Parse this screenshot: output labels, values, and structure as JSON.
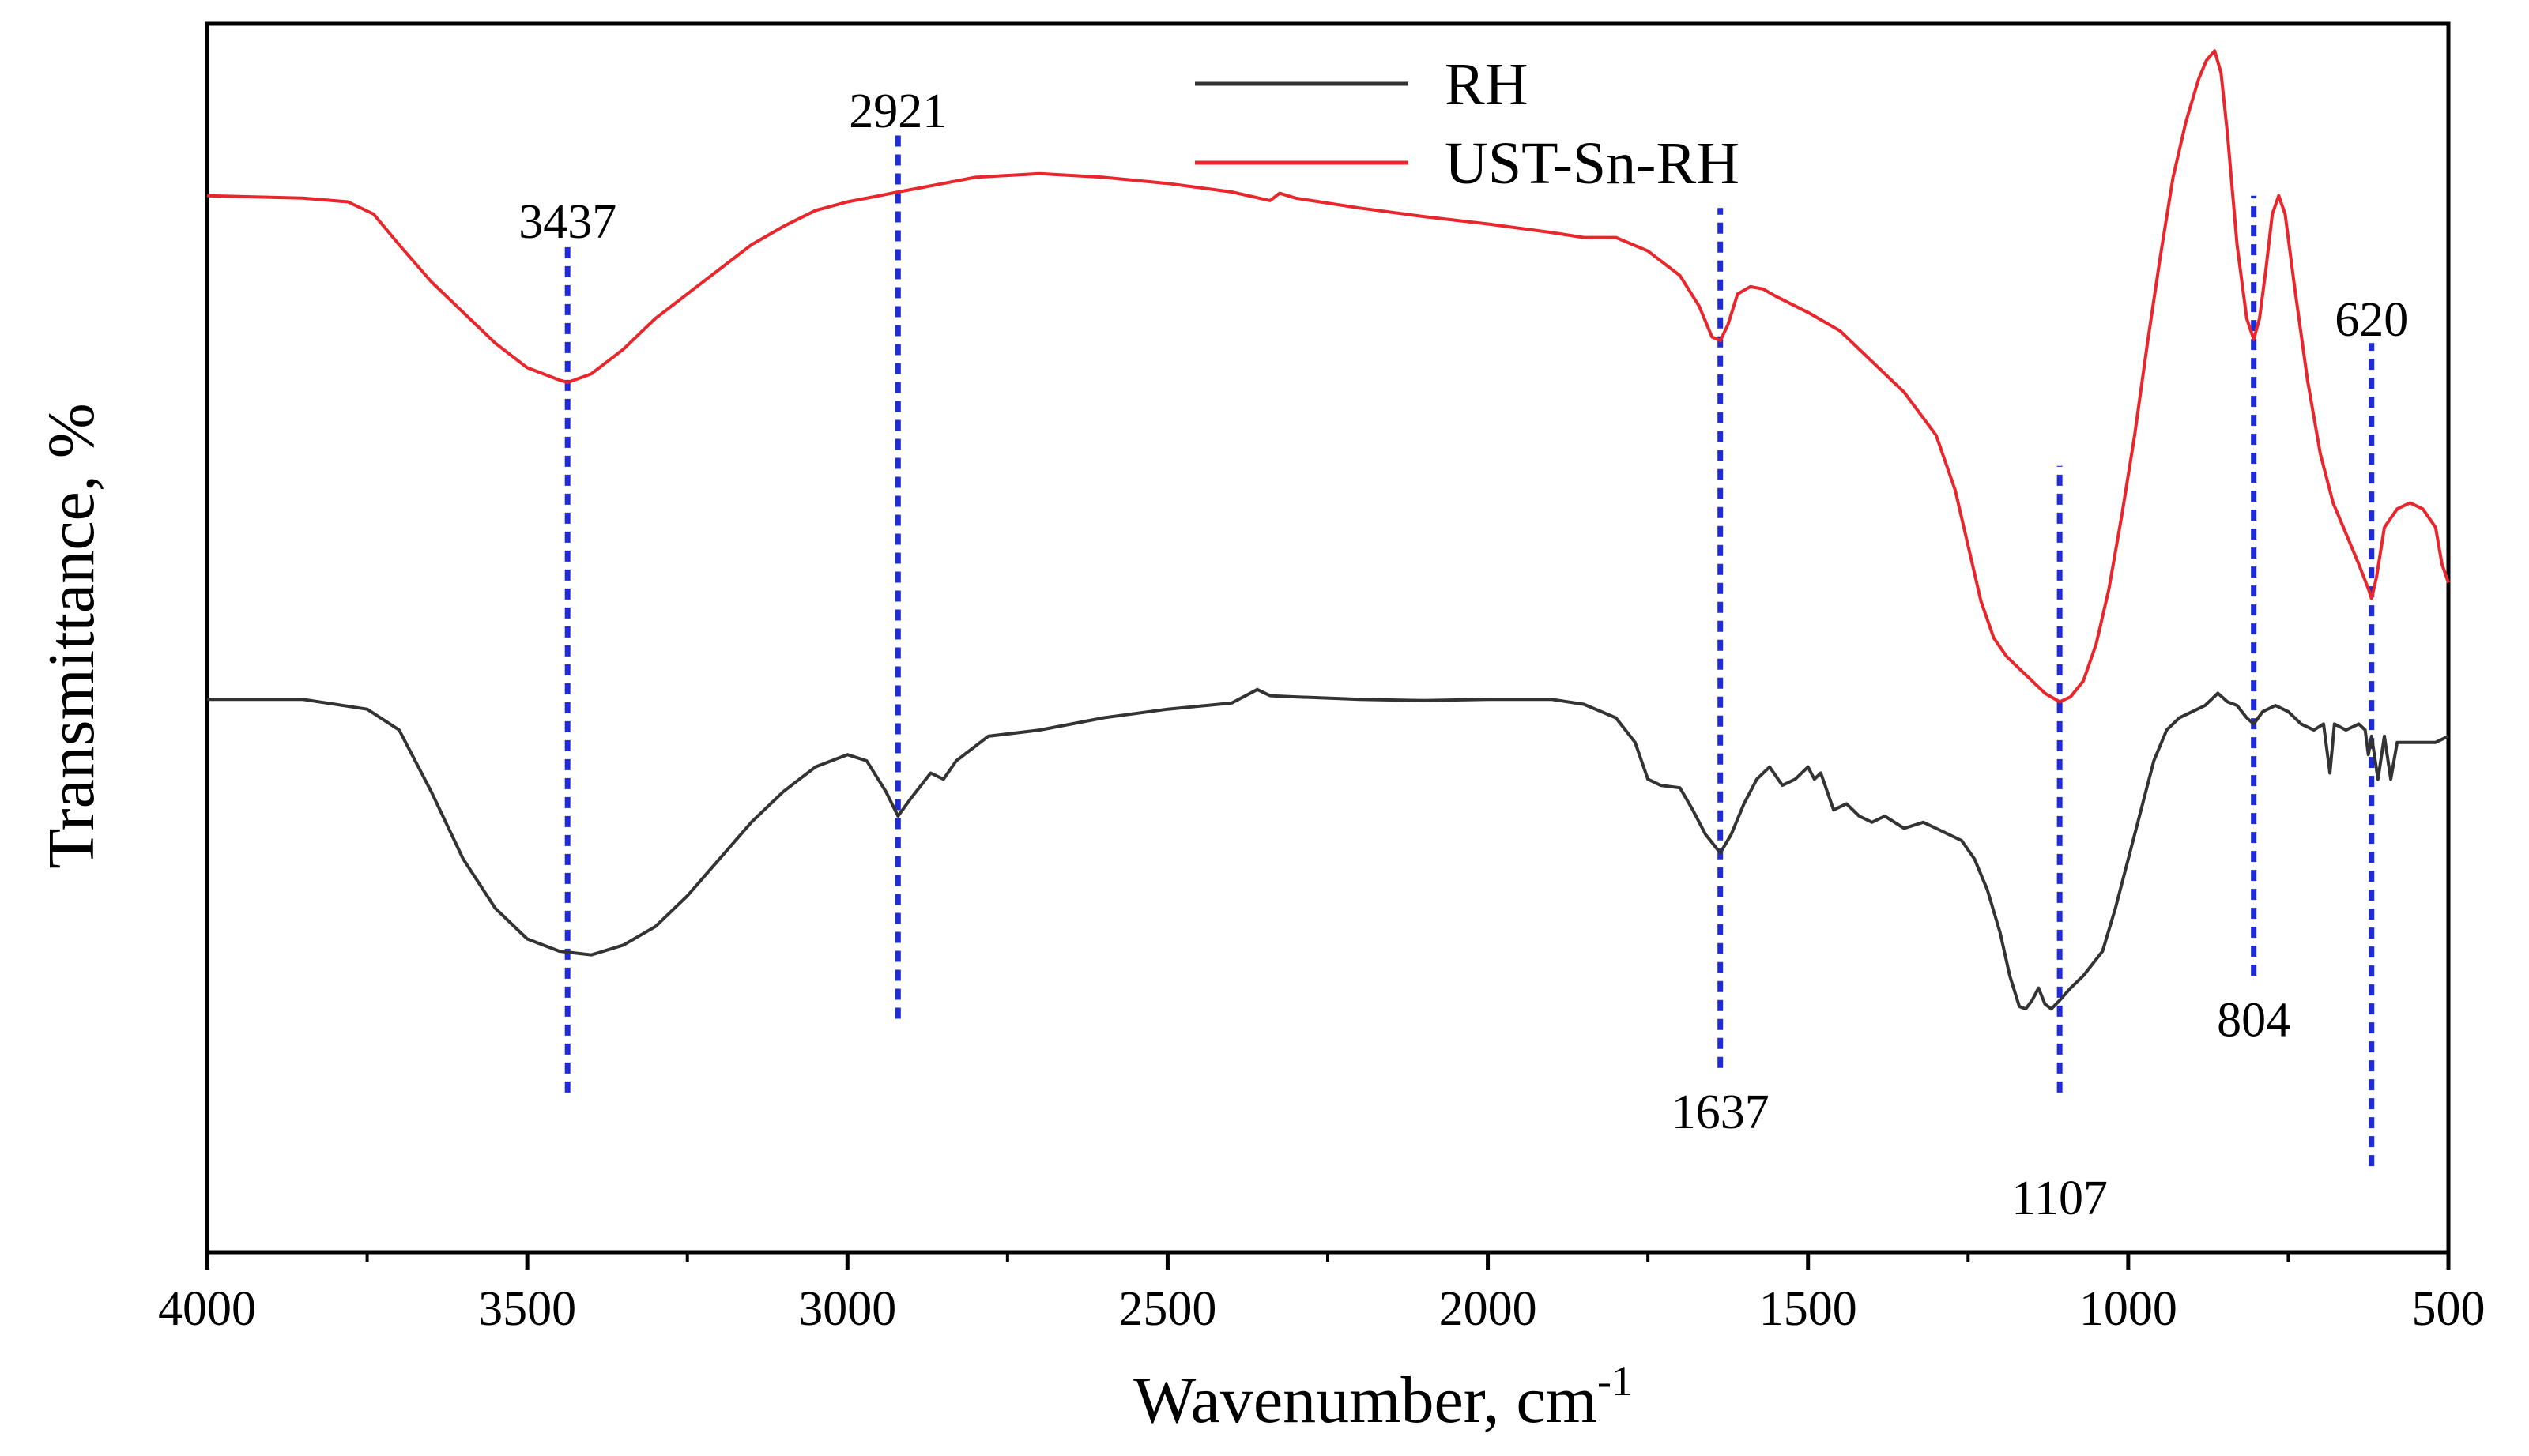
{
  "chart_data": {
    "type": "line",
    "title": "",
    "xlabel": "Wavenumber, cm",
    "xlabel_superscript": "-1",
    "ylabel": "Transmittance, %",
    "xlim": [
      4000,
      500
    ],
    "x_reversed": true,
    "ylim": [
      0,
      100
    ],
    "y_ticks_labeled": false,
    "x_ticks": [
      4000,
      3500,
      3000,
      2500,
      2000,
      1500,
      1000,
      500
    ],
    "x_tick_labels": [
      "4000",
      "3500",
      "3000",
      "2500",
      "2000",
      "1500",
      "1000",
      "500"
    ],
    "legend": {
      "position": "top-center"
    },
    "series": [
      {
        "name": "RH",
        "color": "#333333",
        "points": [
          [
            4000,
            45.0
          ],
          [
            3850,
            45.0
          ],
          [
            3750,
            44.2
          ],
          [
            3700,
            42.5
          ],
          [
            3650,
            37.5
          ],
          [
            3600,
            32.0
          ],
          [
            3550,
            28.0
          ],
          [
            3500,
            25.5
          ],
          [
            3450,
            24.5
          ],
          [
            3400,
            24.2
          ],
          [
            3350,
            25.0
          ],
          [
            3300,
            26.5
          ],
          [
            3250,
            29.0
          ],
          [
            3200,
            32.0
          ],
          [
            3150,
            35.0
          ],
          [
            3100,
            37.5
          ],
          [
            3050,
            39.5
          ],
          [
            3000,
            40.5
          ],
          [
            2970,
            40.0
          ],
          [
            2940,
            37.5
          ],
          [
            2921,
            35.5
          ],
          [
            2900,
            37.0
          ],
          [
            2870,
            39.0
          ],
          [
            2850,
            38.5
          ],
          [
            2830,
            40.0
          ],
          [
            2780,
            42.0
          ],
          [
            2700,
            42.5
          ],
          [
            2600,
            43.5
          ],
          [
            2500,
            44.2
          ],
          [
            2400,
            44.7
          ],
          [
            2360,
            45.8
          ],
          [
            2340,
            45.3
          ],
          [
            2300,
            45.2
          ],
          [
            2200,
            45.0
          ],
          [
            2100,
            44.9
          ],
          [
            2000,
            45.0
          ],
          [
            1900,
            45.0
          ],
          [
            1850,
            44.6
          ],
          [
            1800,
            43.5
          ],
          [
            1770,
            41.5
          ],
          [
            1750,
            38.5
          ],
          [
            1730,
            38.0
          ],
          [
            1700,
            37.8
          ],
          [
            1680,
            36.0
          ],
          [
            1660,
            34.0
          ],
          [
            1637,
            32.5
          ],
          [
            1620,
            34.0
          ],
          [
            1600,
            36.5
          ],
          [
            1580,
            38.5
          ],
          [
            1560,
            39.5
          ],
          [
            1540,
            38.0
          ],
          [
            1520,
            38.5
          ],
          [
            1500,
            39.5
          ],
          [
            1490,
            38.5
          ],
          [
            1480,
            39.0
          ],
          [
            1460,
            36.0
          ],
          [
            1440,
            36.5
          ],
          [
            1420,
            35.5
          ],
          [
            1400,
            35.0
          ],
          [
            1380,
            35.5
          ],
          [
            1350,
            34.5
          ],
          [
            1320,
            35.0
          ],
          [
            1300,
            34.5
          ],
          [
            1260,
            33.5
          ],
          [
            1240,
            32.0
          ],
          [
            1220,
            29.5
          ],
          [
            1200,
            26.0
          ],
          [
            1185,
            22.5
          ],
          [
            1170,
            20.0
          ],
          [
            1160,
            19.8
          ],
          [
            1150,
            20.5
          ],
          [
            1140,
            21.5
          ],
          [
            1130,
            20.2
          ],
          [
            1120,
            19.8
          ],
          [
            1107,
            20.5
          ],
          [
            1090,
            21.5
          ],
          [
            1070,
            22.5
          ],
          [
            1040,
            24.5
          ],
          [
            1020,
            28.0
          ],
          [
            1000,
            32.0
          ],
          [
            980,
            36.0
          ],
          [
            960,
            40.0
          ],
          [
            940,
            42.5
          ],
          [
            920,
            43.5
          ],
          [
            900,
            44.0
          ],
          [
            880,
            44.5
          ],
          [
            860,
            45.5
          ],
          [
            845,
            44.8
          ],
          [
            830,
            44.5
          ],
          [
            815,
            43.5
          ],
          [
            804,
            43.0
          ],
          [
            790,
            44.0
          ],
          [
            770,
            44.5
          ],
          [
            750,
            44.0
          ],
          [
            730,
            43.0
          ],
          [
            710,
            42.5
          ],
          [
            695,
            43.0
          ],
          [
            685,
            39.0
          ],
          [
            678,
            43.0
          ],
          [
            660,
            42.5
          ],
          [
            640,
            43.0
          ],
          [
            630,
            42.5
          ],
          [
            625,
            40.5
          ],
          [
            620,
            42.0
          ],
          [
            610,
            38.5
          ],
          [
            600,
            42.0
          ],
          [
            590,
            38.5
          ],
          [
            580,
            41.5
          ],
          [
            560,
            41.5
          ],
          [
            540,
            41.5
          ],
          [
            520,
            41.5
          ],
          [
            500,
            42.0
          ]
        ]
      },
      {
        "name": "UST-Sn-RH",
        "color": "#e8262c",
        "points": [
          [
            4000,
            86.0
          ],
          [
            3850,
            85.8
          ],
          [
            3780,
            85.5
          ],
          [
            3740,
            84.5
          ],
          [
            3700,
            82.0
          ],
          [
            3650,
            79.0
          ],
          [
            3600,
            76.5
          ],
          [
            3550,
            74.0
          ],
          [
            3500,
            72.0
          ],
          [
            3450,
            71.0
          ],
          [
            3437,
            70.8
          ],
          [
            3400,
            71.5
          ],
          [
            3350,
            73.5
          ],
          [
            3300,
            76.0
          ],
          [
            3250,
            78.0
          ],
          [
            3200,
            80.0
          ],
          [
            3150,
            82.0
          ],
          [
            3100,
            83.5
          ],
          [
            3050,
            84.8
          ],
          [
            3000,
            85.5
          ],
          [
            2950,
            86.0
          ],
          [
            2921,
            86.3
          ],
          [
            2900,
            86.5
          ],
          [
            2850,
            87.0
          ],
          [
            2800,
            87.5
          ],
          [
            2700,
            87.8
          ],
          [
            2600,
            87.5
          ],
          [
            2500,
            87.0
          ],
          [
            2400,
            86.3
          ],
          [
            2340,
            85.6
          ],
          [
            2325,
            86.2
          ],
          [
            2300,
            85.8
          ],
          [
            2200,
            85.0
          ],
          [
            2100,
            84.3
          ],
          [
            2000,
            83.7
          ],
          [
            1900,
            83.0
          ],
          [
            1850,
            82.6
          ],
          [
            1800,
            82.6
          ],
          [
            1750,
            81.5
          ],
          [
            1700,
            79.5
          ],
          [
            1670,
            77.0
          ],
          [
            1650,
            74.5
          ],
          [
            1637,
            74.2
          ],
          [
            1625,
            75.5
          ],
          [
            1610,
            78.0
          ],
          [
            1590,
            78.6
          ],
          [
            1570,
            78.4
          ],
          [
            1550,
            77.8
          ],
          [
            1500,
            76.5
          ],
          [
            1450,
            75.0
          ],
          [
            1400,
            72.5
          ],
          [
            1350,
            70.0
          ],
          [
            1300,
            66.5
          ],
          [
            1270,
            62.0
          ],
          [
            1250,
            57.5
          ],
          [
            1230,
            53.0
          ],
          [
            1210,
            50.0
          ],
          [
            1190,
            48.5
          ],
          [
            1170,
            47.5
          ],
          [
            1150,
            46.5
          ],
          [
            1130,
            45.5
          ],
          [
            1107,
            44.8
          ],
          [
            1090,
            45.2
          ],
          [
            1070,
            46.5
          ],
          [
            1050,
            49.5
          ],
          [
            1030,
            54.0
          ],
          [
            1010,
            60.0
          ],
          [
            990,
            66.5
          ],
          [
            970,
            74.0
          ],
          [
            950,
            81.0
          ],
          [
            930,
            87.5
          ],
          [
            910,
            92.0
          ],
          [
            890,
            95.5
          ],
          [
            878,
            97.0
          ],
          [
            865,
            97.8
          ],
          [
            855,
            96.0
          ],
          [
            845,
            91.0
          ],
          [
            830,
            82.0
          ],
          [
            815,
            76.0
          ],
          [
            804,
            74.3
          ],
          [
            795,
            76.0
          ],
          [
            785,
            80.0
          ],
          [
            775,
            84.5
          ],
          [
            765,
            86.0
          ],
          [
            755,
            84.5
          ],
          [
            740,
            78.5
          ],
          [
            720,
            71.0
          ],
          [
            700,
            65.0
          ],
          [
            680,
            61.0
          ],
          [
            660,
            58.5
          ],
          [
            640,
            56.0
          ],
          [
            625,
            54.0
          ],
          [
            620,
            53.2
          ],
          [
            612,
            55.0
          ],
          [
            600,
            59.0
          ],
          [
            580,
            60.5
          ],
          [
            560,
            61.0
          ],
          [
            540,
            60.5
          ],
          [
            520,
            59.0
          ],
          [
            510,
            56.0
          ],
          [
            500,
            54.5
          ]
        ]
      }
    ],
    "annotations": [
      {
        "label": "3437",
        "x": 3437,
        "y_from": 13.0,
        "y_to": 82.0,
        "label_y": 84.0
      },
      {
        "label": "2921",
        "x": 2921,
        "y_from": 19.0,
        "y_to": 91.0,
        "label_y": 93.0
      },
      {
        "label": "1637",
        "x": 1637,
        "y_from": 15.0,
        "y_to": 85.0,
        "label_y": 11.5
      },
      {
        "label": "1107",
        "x": 1107,
        "y_from": 13.0,
        "y_to": 64.0,
        "label_y": 4.5
      },
      {
        "label": "804",
        "x": 804,
        "y_from": 22.5,
        "y_to": 86.0,
        "label_y": 19.0
      },
      {
        "label": "620",
        "x": 620,
        "y_from": 7.0,
        "y_to": 74.0,
        "label_y": 76.0
      }
    ],
    "annotation_line_color": "#1f2bd6"
  }
}
